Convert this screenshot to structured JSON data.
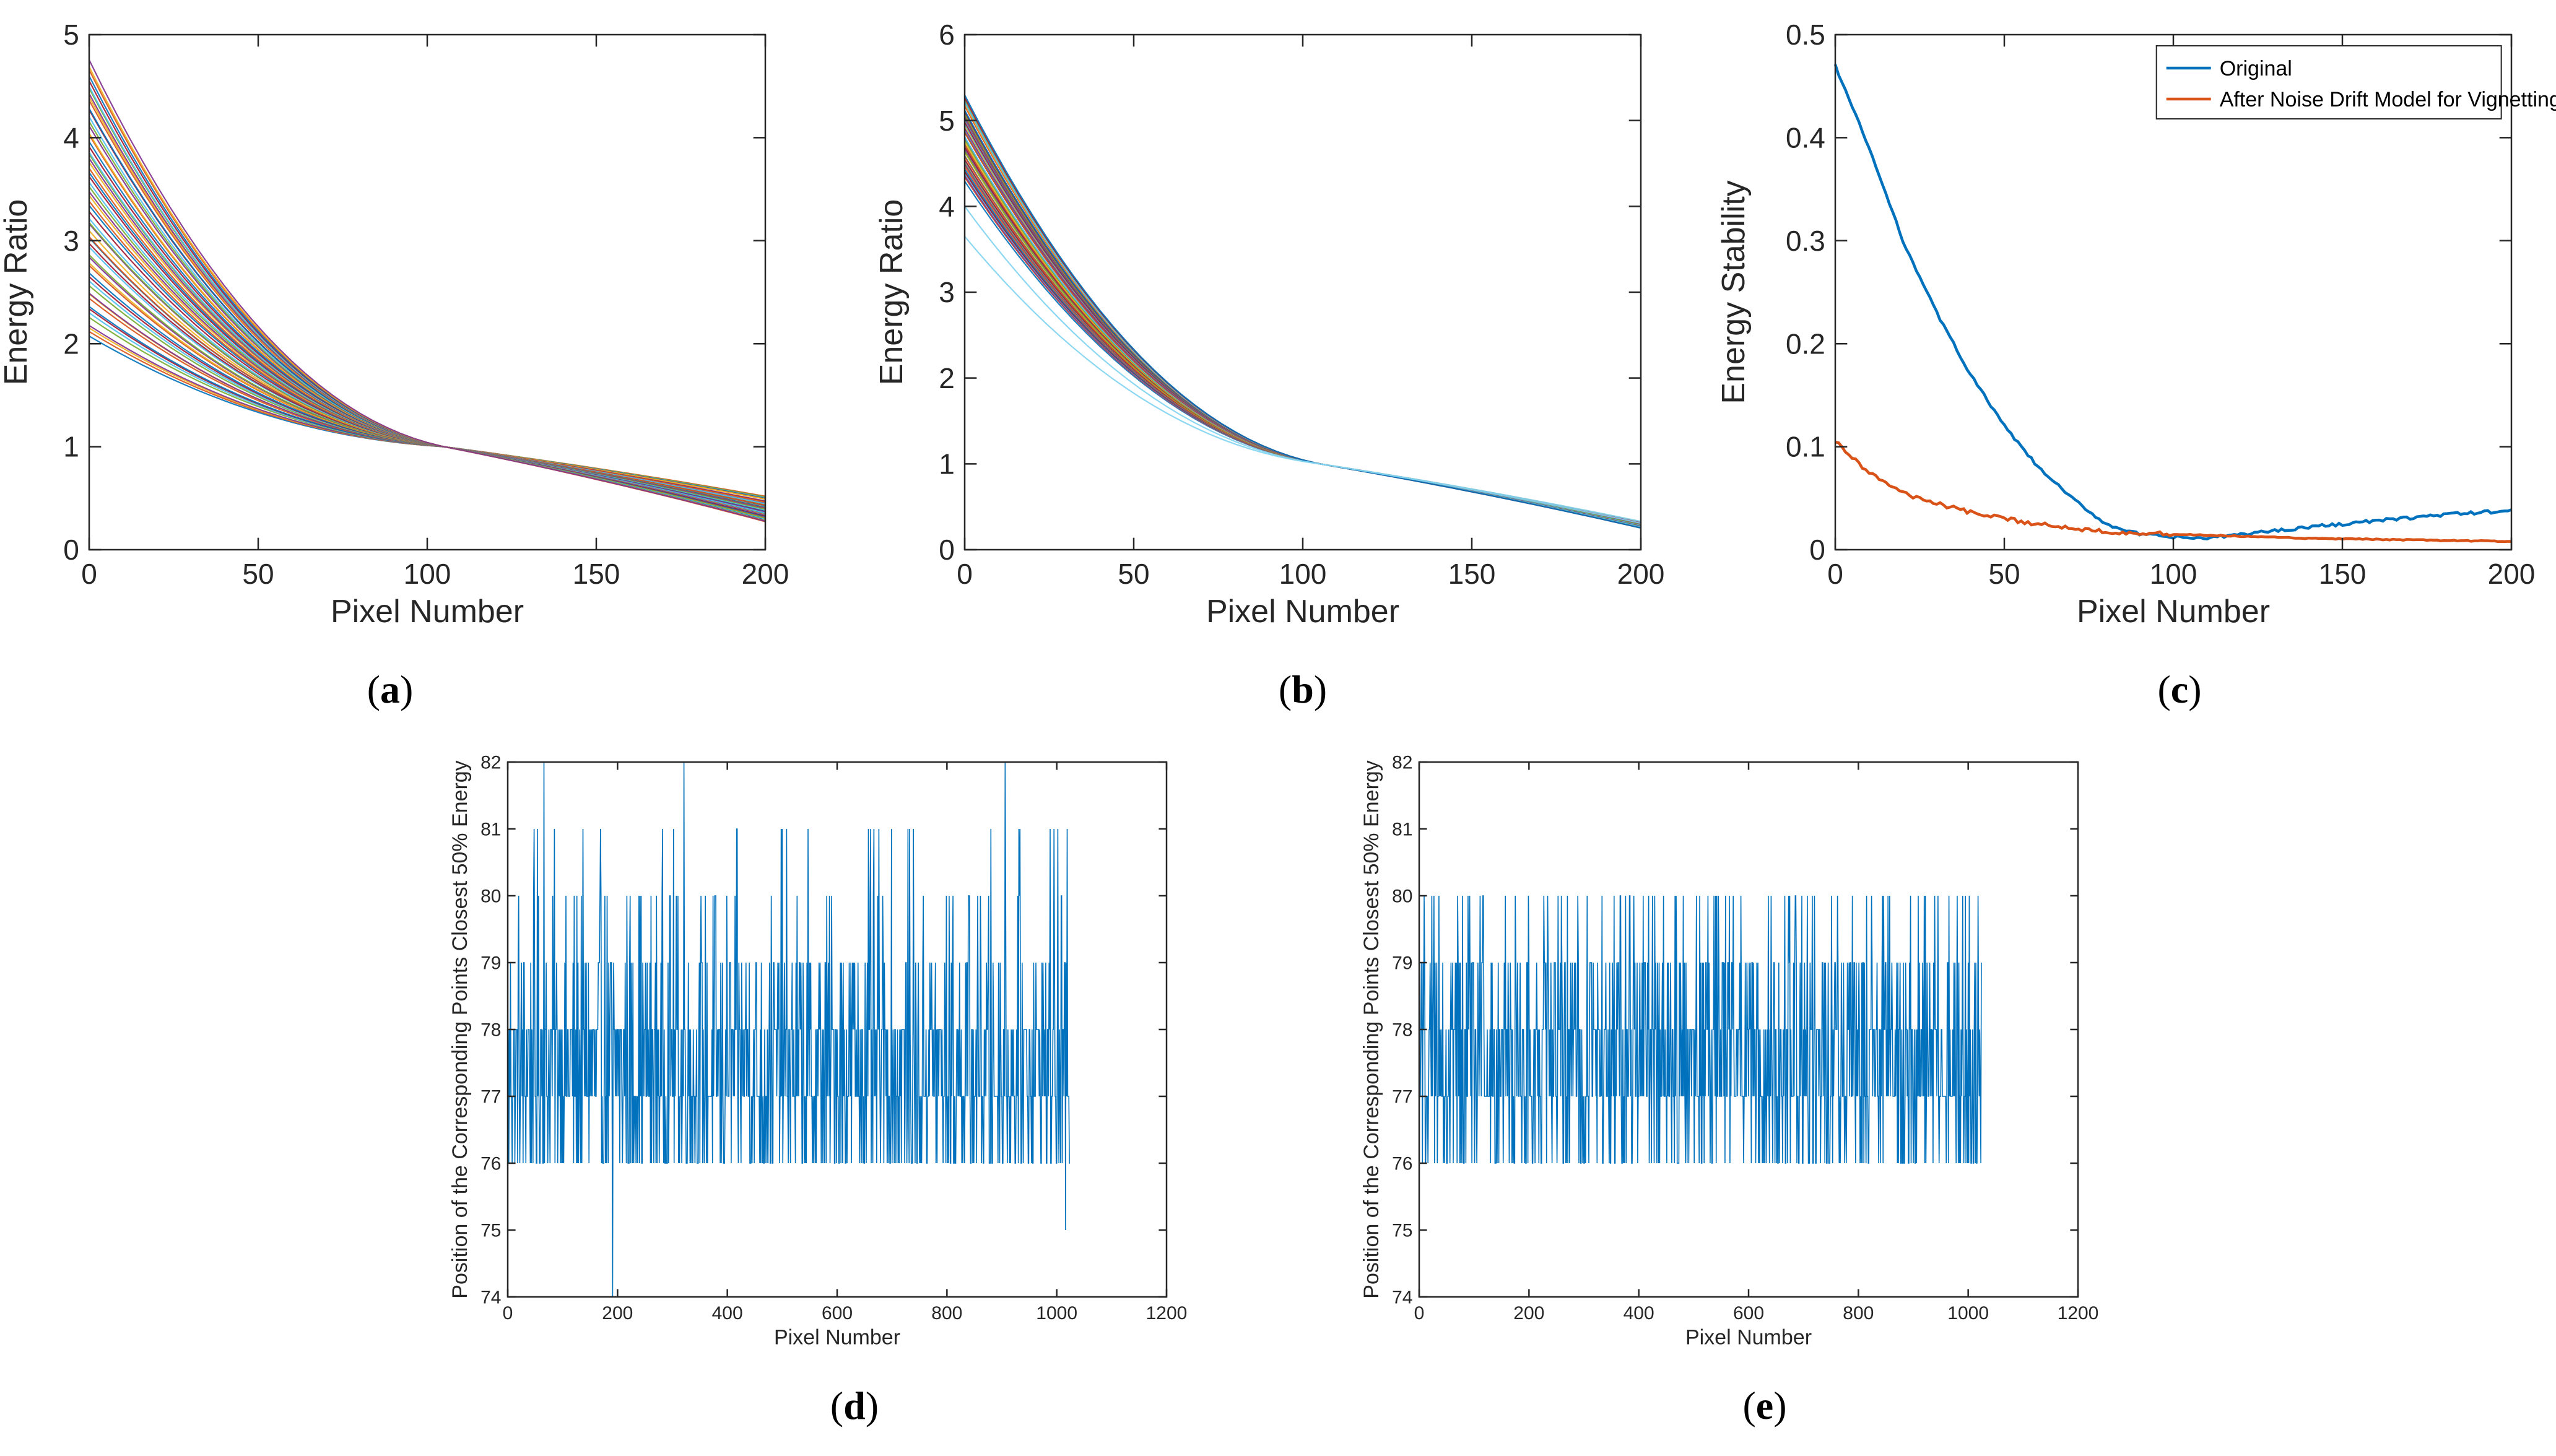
{
  "figure": {
    "panels": [
      "a",
      "b",
      "c",
      "d",
      "e"
    ]
  },
  "chart_data": [
    {
      "id": "a",
      "label": "a",
      "type": "line",
      "xlabel": "Pixel Number",
      "ylabel": "Energy Ratio",
      "xlim": [
        0,
        200
      ],
      "ylim": [
        0,
        5
      ],
      "xticks": [
        0,
        50,
        100,
        150,
        200
      ],
      "yticks": [
        0,
        1,
        2,
        3,
        4,
        5
      ],
      "description_of_series": "family of many colored decaying curves",
      "series_family": {
        "count": 60,
        "pivot_x": 105,
        "pivot_y": 1.0,
        "start_range": [
          2.05,
          4.75
        ],
        "end_range": [
          0.27,
          0.52
        ]
      },
      "colors": [
        "#0072BD",
        "#D95319",
        "#EDB120",
        "#7E2F8E",
        "#77AC30",
        "#4DBEEE",
        "#A2142F"
      ]
    },
    {
      "id": "b",
      "label": "b",
      "type": "line",
      "xlabel": "Pixel Number",
      "ylabel": "Energy Ratio",
      "xlim": [
        0,
        200
      ],
      "ylim": [
        0,
        6
      ],
      "xticks": [
        0,
        50,
        100,
        150,
        200
      ],
      "yticks": [
        0,
        1,
        2,
        3,
        4,
        5,
        6
      ],
      "series_family": {
        "count": 50,
        "pivot_x": 105,
        "pivot_y": 1.0,
        "start_range": [
          4.3,
          5.28
        ],
        "end_range": [
          0.26,
          0.32
        ],
        "outliers": [
          {
            "start": 3.65,
            "end": 0.33
          },
          {
            "start": 4.0,
            "end": 0.31
          }
        ]
      },
      "colors": [
        "#0072BD",
        "#D95319",
        "#EDB120",
        "#7E2F8E",
        "#77AC30",
        "#4DBEEE",
        "#A2142F"
      ]
    },
    {
      "id": "c",
      "label": "c",
      "type": "line",
      "xlabel": "Pixel Number",
      "ylabel": "Energy Stability",
      "xlim": [
        0,
        200
      ],
      "ylim": [
        0,
        0.5
      ],
      "xticks": [
        0,
        50,
        100,
        150,
        200
      ],
      "yticks": [
        0,
        0.1,
        0.2,
        0.3,
        0.4,
        0.5
      ],
      "legend_position": "top-right",
      "series": [
        {
          "name": "Original",
          "color": "#0072BD",
          "x": [
            0,
            10,
            20,
            30,
            40,
            50,
            60,
            70,
            80,
            90,
            100,
            110,
            120,
            140,
            160,
            180,
            200
          ],
          "y": [
            0.47,
            0.39,
            0.3,
            0.23,
            0.17,
            0.12,
            0.08,
            0.05,
            0.025,
            0.015,
            0.012,
            0.011,
            0.015,
            0.022,
            0.028,
            0.034,
            0.038
          ]
        },
        {
          "name": "After Noise Drift Model for Vignetting",
          "color": "#D95319",
          "x": [
            0,
            10,
            20,
            30,
            40,
            50,
            60,
            70,
            80,
            90,
            100,
            120,
            140,
            160,
            180,
            200
          ],
          "y": [
            0.105,
            0.075,
            0.055,
            0.045,
            0.036,
            0.03,
            0.025,
            0.021,
            0.018,
            0.016,
            0.015,
            0.013,
            0.011,
            0.01,
            0.009,
            0.008
          ]
        }
      ]
    },
    {
      "id": "d",
      "label": "d",
      "type": "line",
      "xlabel": "Pixel Number",
      "ylabel": "Position of the Corresponding Points Closest 50% Energy",
      "xlim": [
        0,
        1200
      ],
      "ylim": [
        74,
        82
      ],
      "xticks": [
        0,
        200,
        400,
        600,
        800,
        1000,
        1200
      ],
      "yticks": [
        74,
        75,
        76,
        77,
        78,
        79,
        80,
        81,
        82
      ],
      "series_summary": {
        "n_points": 1024,
        "integer_values_range": [
          74,
          82
        ],
        "dominant_range": [
          76,
          80
        ],
        "spikes": [
          {
            "x": 65,
            "y": 82
          },
          {
            "x": 320,
            "y": 82
          },
          {
            "x": 905,
            "y": 82
          },
          {
            "x": 190,
            "y": 74
          },
          {
            "x": 1015,
            "y": 75
          }
        ]
      },
      "color": "#0072BD"
    },
    {
      "id": "e",
      "label": "e",
      "type": "line",
      "xlabel": "Pixel Number",
      "ylabel": "Position of the Corresponding Points Closest 50% Energy",
      "xlim": [
        0,
        1200
      ],
      "ylim": [
        74,
        82
      ],
      "xticks": [
        0,
        200,
        400,
        600,
        800,
        1000,
        1200
      ],
      "yticks": [
        74,
        75,
        76,
        77,
        78,
        79,
        80,
        81,
        82
      ],
      "series_summary": {
        "n_points": 1024,
        "integer_values_range": [
          76,
          80
        ]
      },
      "color": "#0072BD"
    }
  ]
}
